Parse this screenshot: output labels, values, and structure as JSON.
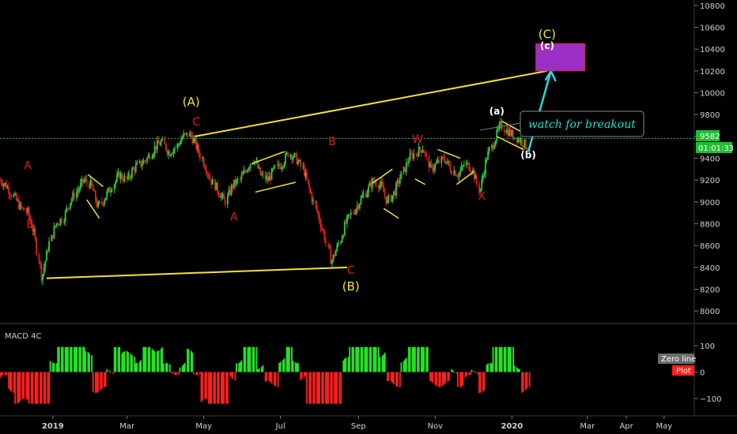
{
  "chart_data": [
    {
      "type": "candlestick",
      "title": "",
      "ylabel": "",
      "ylim": [
        7900,
        10850
      ],
      "yticks": [
        8000,
        8200,
        8400,
        8600,
        8800,
        9000,
        9200,
        9400,
        9600,
        9800,
        10000,
        10200,
        10400,
        10600,
        10800
      ],
      "xticks": [
        "2019",
        "Mar",
        "May",
        "Jul",
        "Sep",
        "Nov",
        "2020",
        "Mar",
        "Apr",
        "May"
      ],
      "last_price": "9582",
      "countdown": "01:01:33",
      "close_series": [
        9200,
        9150,
        9050,
        8950,
        8900,
        8700,
        8300,
        8600,
        8800,
        8850,
        9000,
        9100,
        9200,
        9150,
        8950,
        9050,
        9150,
        9250,
        9200,
        9300,
        9350,
        9400,
        9500,
        9550,
        9450,
        9500,
        9600,
        9620,
        9500,
        9350,
        9200,
        9100,
        9000,
        9150,
        9200,
        9300,
        9400,
        9250,
        9200,
        9300,
        9350,
        9450,
        9400,
        9300,
        9100,
        8900,
        8700,
        8450,
        8600,
        8800,
        8900,
        9000,
        9100,
        9200,
        9150,
        9000,
        9100,
        9250,
        9400,
        9450,
        9500,
        9300,
        9350,
        9400,
        9300,
        9250,
        9350,
        9300,
        9100,
        9400,
        9550,
        9700,
        9650,
        9600,
        9550,
        9500
      ],
      "annotations": {
        "red": [
          {
            "label": "A",
            "date": "2018-12-12",
            "price": 9300
          },
          {
            "label": "B",
            "date": "2018-12-14",
            "price": 8760
          },
          {
            "label": "C",
            "date": "2019-04-25",
            "price": 9700
          },
          {
            "label": "A",
            "date": "2019-05-25",
            "price": 8830
          },
          {
            "label": "B",
            "date": "2019-08-11",
            "price": 9520
          },
          {
            "label": "C",
            "date": "2019-08-26",
            "price": 8340
          },
          {
            "label": "W",
            "date": "2019-10-18",
            "price": 9540
          },
          {
            "label": "X",
            "date": "2019-12-08",
            "price": 9020
          }
        ],
        "yellow": [
          {
            "label": "(A)",
            "date": "2019-04-21",
            "price": 9880
          },
          {
            "label": "(B)",
            "date": "2019-08-26",
            "price": 8190
          },
          {
            "label": "(C)",
            "date": "2020-01-29",
            "price": 10500
          }
        ],
        "white": [
          {
            "label": "(a)",
            "date": "2019-12-20",
            "price": 9800
          },
          {
            "label": "(b)",
            "date": "2020-01-14",
            "price": 9400
          },
          {
            "label": "(c)",
            "date": "2020-01-29",
            "price": 10400
          }
        ]
      },
      "target_box": {
        "from": "2020-01-20",
        "to": "2020-02-28",
        "price_low": 10200,
        "price_high": 10450
      }
    },
    {
      "type": "histogram",
      "title": "MACD 4C",
      "ylim": [
        -160,
        160
      ],
      "yticks": [
        100,
        0,
        -100
      ],
      "legend": [
        "Zero line",
        "Plot"
      ],
      "colors": {
        "positive": "#22e322",
        "negative": "#ff1e1e",
        "zero_tag": "#6b6b6b",
        "plot_tag": "#ff1e1e"
      }
    }
  ],
  "callout": {
    "text": "watch for breakout"
  },
  "colors": {
    "background": "#000000",
    "bull": "#2ecc40",
    "bear": "#e02020",
    "trendline": "#f2e23a",
    "arrow": "#29d7e6",
    "box": "#9b2fc4",
    "box_border": "#e0203c",
    "price_tag": "#1fbf2f"
  }
}
